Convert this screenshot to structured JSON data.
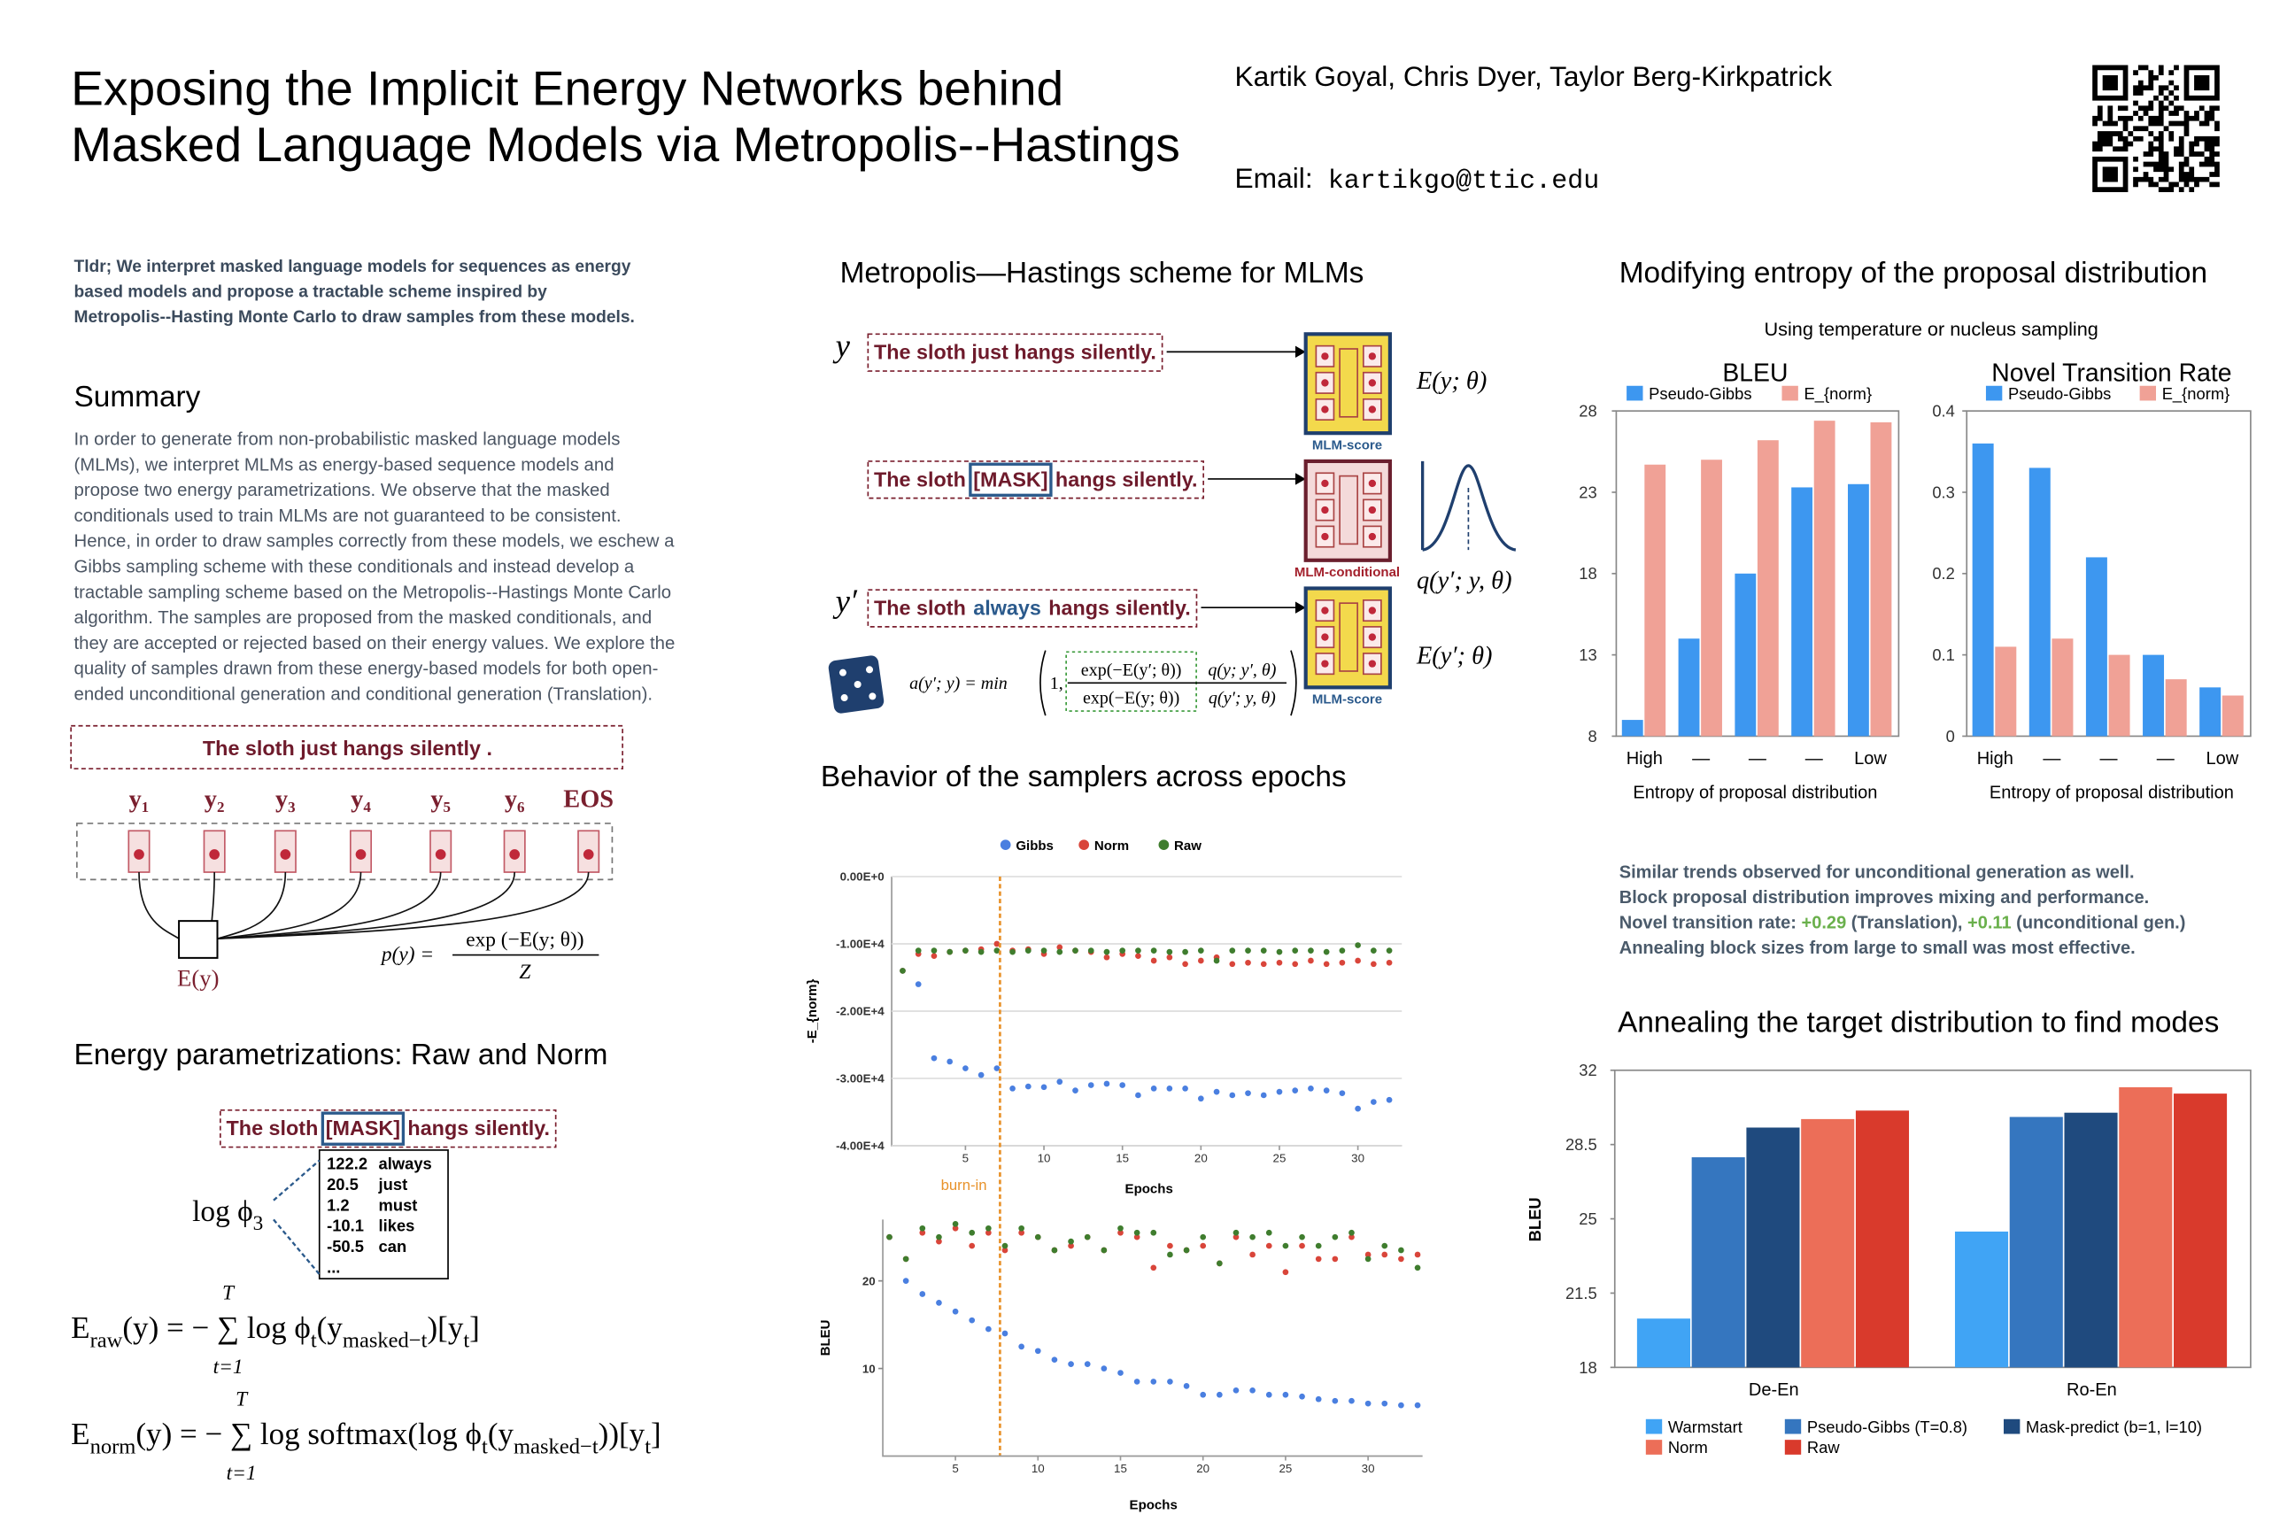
{
  "header": {
    "title_lines": [
      "Exposing the Implicit Energy Networks behind",
      "Masked Language Models via Metropolis--Hastings"
    ],
    "authors": "Kartik Goyal, Chris Dyer, Taylor Berg-Kirkpatrick",
    "email_label": "Email:",
    "email": "kartikgo@ttic.edu"
  },
  "tldr_lines": [
    "Tldr; We interpret masked language models for sequences as energy",
    "based models and propose a tractable scheme inspired by",
    "Metropolis--Hasting Monte Carlo to draw samples from these models."
  ],
  "summary": {
    "heading": "Summary",
    "lines": [
      "In order to generate from non-probabilistic masked language models",
      "(MLMs), we interpret MLMs as energy-based sequence models and",
      "propose two energy parametrizations. We observe that the masked",
      "conditionals used to train MLMs are not guaranteed to be consistent.",
      "Hence, in order to draw samples correctly from these models, we eschew a",
      "Gibbs sampling scheme with these conditionals and instead develop a",
      "tractable sampling scheme based on the Metropolis--Hastings Monte Carlo",
      "algorithm. The samples are proposed from the masked conditionals, and",
      "they are accepted or rejected based on their energy values. We explore the",
      "quality of samples drawn from these energy-based models for both open-",
      "ended unconditional generation and conditional generation (Translation)."
    ]
  },
  "model_diagram": {
    "sentence": "The sloth just hangs silently .",
    "tokens": [
      "y₁",
      "y₂",
      "y₃",
      "y₄",
      "y₅",
      "y₆",
      "EOS"
    ],
    "energy": "E(y)",
    "formula": {
      "lhs": "p(y) =",
      "numerator": "exp (−E(y; θ))",
      "denominator": "Z"
    }
  },
  "energy_section": {
    "heading": "Energy parametrizations: Raw and Norm",
    "sentence": [
      "The sloth",
      "[MASK]",
      "hangs silently."
    ],
    "log_phi": [
      "log ϕ",
      "3"
    ],
    "candidates": [
      [
        "122.2",
        "always"
      ],
      [
        "20.5",
        "just"
      ],
      [
        "1.2",
        "must"
      ],
      [
        "-10.1",
        "likes"
      ],
      [
        "-50.5",
        "can"
      ],
      [
        "..."
      ]
    ],
    "formulas": [
      {
        "parts": [
          "E",
          "raw",
          "(y) = − ∑ log ϕ",
          "t",
          "(y",
          "masked−t",
          ")[y",
          "t",
          "]"
        ],
        "sum_top": "T",
        "sum_bottom": "t=1"
      },
      {
        "parts": [
          "E",
          "norm",
          "(y) = − ∑ log softmax(log ϕ",
          "t",
          "(y",
          "masked−t",
          "))[y",
          "t",
          "]"
        ],
        "sum_top": "T",
        "sum_bottom": "t=1"
      }
    ]
  },
  "mh_section": {
    "heading": "Metropolis—Hastings scheme for MLMs",
    "rows": [
      {
        "var": "y",
        "sentence": [
          "The sloth just hangs silently."
        ],
        "model": "MLM-score",
        "output": "E(y; θ)"
      },
      {
        "sentence": [
          "The sloth",
          "[MASK]",
          "hangs silently."
        ],
        "model": "MLM-conditional",
        "output": "q(y′; y, θ)"
      },
      {
        "var": "y′",
        "sentence": [
          "The sloth",
          "always",
          "hangs silently."
        ],
        "model": "MLM-score",
        "output": "E(y′; θ)"
      }
    ],
    "acceptance": {
      "lhs": "a(y′; y) = min",
      "one": "1,",
      "numerator": [
        "exp(−E(y′; θ))",
        "q(y; y′, θ)"
      ],
      "denominator": [
        "exp(−E(y; θ))",
        "q(y′; y, θ)"
      ]
    }
  },
  "behavior": {
    "heading": "Behavior of the samplers across epochs"
  },
  "entropy": {
    "heading": "Modifying entropy of the proposal distribution",
    "subtitle": "Using temperature or nucleus sampling"
  },
  "findings": {
    "highlight_color": "#6ab04c",
    "lines": [
      [
        "Similar trends observed for unconditional generation as well."
      ],
      [
        "Block proposal distribution improves mixing and performance."
      ],
      [
        "Novel transition rate: ",
        "+0.29",
        " (Translation), ",
        "+0.11",
        " (unconditional gen.)"
      ],
      [
        "Annealing block sizes from large to small was most effective."
      ]
    ]
  },
  "annealing": {
    "heading": "Annealing the target distribution to find modes"
  },
  "chart_data": [
    {
      "type": "bar",
      "title": "BLEU",
      "xlabel": "Entropy of proposal distribution",
      "categories": [
        "High",
        "—",
        "—",
        "—",
        "Low"
      ],
      "series": [
        {
          "name": "Pseudo-Gibbs",
          "color": "#3d97f0",
          "values": [
            9,
            14,
            18,
            23.3,
            23.5
          ]
        },
        {
          "name": "E_{norm}",
          "color": "#f0a196",
          "values": [
            24.7,
            25,
            26.2,
            27.4,
            27.3
          ]
        }
      ],
      "ylim": [
        8,
        28
      ],
      "yticks": [
        8,
        13,
        18,
        23,
        28
      ]
    },
    {
      "type": "bar",
      "title": "Novel Transition Rate",
      "xlabel": "Entropy of proposal distribution",
      "categories": [
        "High",
        "—",
        "—",
        "—",
        "Low"
      ],
      "series": [
        {
          "name": "Pseudo-Gibbs",
          "color": "#3d97f0",
          "values": [
            0.36,
            0.33,
            0.22,
            0.1,
            0.06
          ]
        },
        {
          "name": "E_{norm}",
          "color": "#f0a196",
          "values": [
            0.11,
            0.12,
            0.1,
            0.07,
            0.05
          ]
        }
      ],
      "ylim": [
        0,
        0.4
      ],
      "yticks": [
        0,
        0.1,
        0.2,
        0.3,
        0.4
      ]
    },
    {
      "type": "line",
      "ylabel": "-E_{norm}",
      "xlabel": "Epochs",
      "grid": true,
      "x": [
        1,
        2,
        3,
        4,
        5,
        6,
        7,
        8,
        9,
        10,
        11,
        12,
        13,
        14,
        15,
        16,
        17,
        18,
        19,
        20,
        21,
        22,
        23,
        24,
        25,
        26,
        27,
        28,
        29,
        30,
        31,
        32
      ],
      "xlim": [
        0.3,
        32.8
      ],
      "xticks": [
        5,
        10,
        15,
        20,
        25,
        30
      ],
      "ylim": [
        -40000,
        0
      ],
      "yticks": [
        {
          "value": 0,
          "label": "0.00E+0"
        },
        {
          "value": -10000,
          "label": "-1.00E+4"
        },
        {
          "value": -20000,
          "label": "-2.00E+4"
        },
        {
          "value": -30000,
          "label": "-3.00E+4"
        },
        {
          "value": -40000,
          "label": "-4.00E+4"
        }
      ],
      "series": [
        {
          "name": "Gibbs",
          "color": "#4a7fe0",
          "values": [
            -14000,
            -16000,
            -27000,
            -27500,
            -28500,
            -29500,
            -28500,
            -31500,
            -31200,
            -31300,
            -30500,
            -31800,
            -31000,
            -30800,
            -31000,
            -32500,
            -31500,
            -31500,
            -31500,
            -33000,
            -32000,
            -32500,
            -32200,
            -32500,
            -32000,
            -31800,
            -31500,
            -31800,
            -32200,
            -34500,
            -33500,
            -33200
          ]
        },
        {
          "name": "Norm",
          "color": "#d9453a",
          "values": [
            -14000,
            -11500,
            -11800,
            -11200,
            -11000,
            -10800,
            -10000,
            -11000,
            -10800,
            -11500,
            -10500,
            -11000,
            -11200,
            -12000,
            -11500,
            -11800,
            -12500,
            -12000,
            -13000,
            -12500,
            -12000,
            -13000,
            -12800,
            -13000,
            -12800,
            -13000,
            -12500,
            -13000,
            -12800,
            -12500,
            -13000,
            -12800
          ]
        },
        {
          "name": "Raw",
          "color": "#3f7d2e",
          "values": [
            -14000,
            -11000,
            -11000,
            -11200,
            -11000,
            -11200,
            -11000,
            -11200,
            -11000,
            -11000,
            -11200,
            -11000,
            -11000,
            -11200,
            -11000,
            -11000,
            -11000,
            -11200,
            -11200,
            -11000,
            -12500,
            -11000,
            -11000,
            -11000,
            -11200,
            -11000,
            -11000,
            -11200,
            -11000,
            -10200,
            -11000,
            -11000
          ]
        }
      ],
      "annotations": [
        {
          "label": "burn-in",
          "x": 7.2,
          "color": "#e8922a"
        }
      ]
    },
    {
      "type": "line",
      "ylabel": "BLEU",
      "xlabel": "Epochs",
      "x": [
        1,
        2,
        3,
        4,
        5,
        6,
        7,
        8,
        9,
        10,
        11,
        12,
        13,
        14,
        15,
        16,
        17,
        18,
        19,
        20,
        21,
        22,
        23,
        24,
        25,
        26,
        27,
        28,
        29,
        30,
        31,
        32,
        33
      ],
      "xlim": [
        0.6,
        33.3
      ],
      "xticks": [
        5,
        10,
        15,
        20,
        25,
        30
      ],
      "ylim": [
        0,
        27
      ],
      "yticks": [
        10,
        20
      ],
      "series": [
        {
          "color": "#4a7fe0",
          "values": [
            25,
            20,
            18.5,
            17.5,
            16.5,
            15.5,
            14.5,
            14,
            12.5,
            12,
            11,
            10.5,
            10.5,
            10,
            9.5,
            8.5,
            8.5,
            8.5,
            8,
            7,
            7,
            7.5,
            7.5,
            7,
            7,
            6.8,
            6.5,
            6.3,
            6.3,
            6,
            6,
            5.8,
            5.8
          ]
        },
        {
          "color": "#d9453a",
          "values": [
            25,
            22.5,
            25.5,
            24.5,
            26,
            24,
            25.5,
            23.5,
            25.5,
            25,
            23.5,
            24,
            25,
            23.5,
            25.5,
            25,
            21.5,
            24,
            23.5,
            24,
            22,
            25,
            23,
            24,
            21,
            24,
            22.5,
            22.5,
            25,
            23,
            23,
            22.5,
            23
          ]
        },
        {
          "color": "#3f7d2e",
          "values": [
            25,
            22.5,
            26,
            25,
            26.5,
            25.5,
            26,
            24,
            26,
            25,
            23.5,
            24.5,
            25,
            23.5,
            26,
            25.5,
            25.5,
            23,
            23.5,
            25,
            22,
            25.5,
            25,
            25.5,
            24,
            25,
            24,
            25,
            25.5,
            22.5,
            24,
            23.5,
            21.5
          ]
        }
      ]
    },
    {
      "type": "bar",
      "ylabel": "BLEU",
      "categories": [
        "De-En",
        "Ro-En"
      ],
      "ylim": [
        18,
        32
      ],
      "yticks": [
        18,
        21.5,
        25,
        28.5,
        32
      ],
      "series": [
        {
          "name": "Warmstart",
          "color": "#40a4f5",
          "values": [
            20.3,
            24.4
          ]
        },
        {
          "name": "Pseudo-Gibbs (T=0.8)",
          "color": "#3576bf",
          "values": [
            27.9,
            29.8
          ]
        },
        {
          "name": "Mask-predict (b=1, l=10)",
          "color": "#1f4a7e",
          "values": [
            29.3,
            30
          ]
        },
        {
          "name": "Norm",
          "color": "#ec6e58",
          "values": [
            29.7,
            31.2
          ]
        },
        {
          "name": "Raw",
          "color": "#d93a2c",
          "values": [
            30.1,
            30.9
          ]
        }
      ]
    }
  ]
}
